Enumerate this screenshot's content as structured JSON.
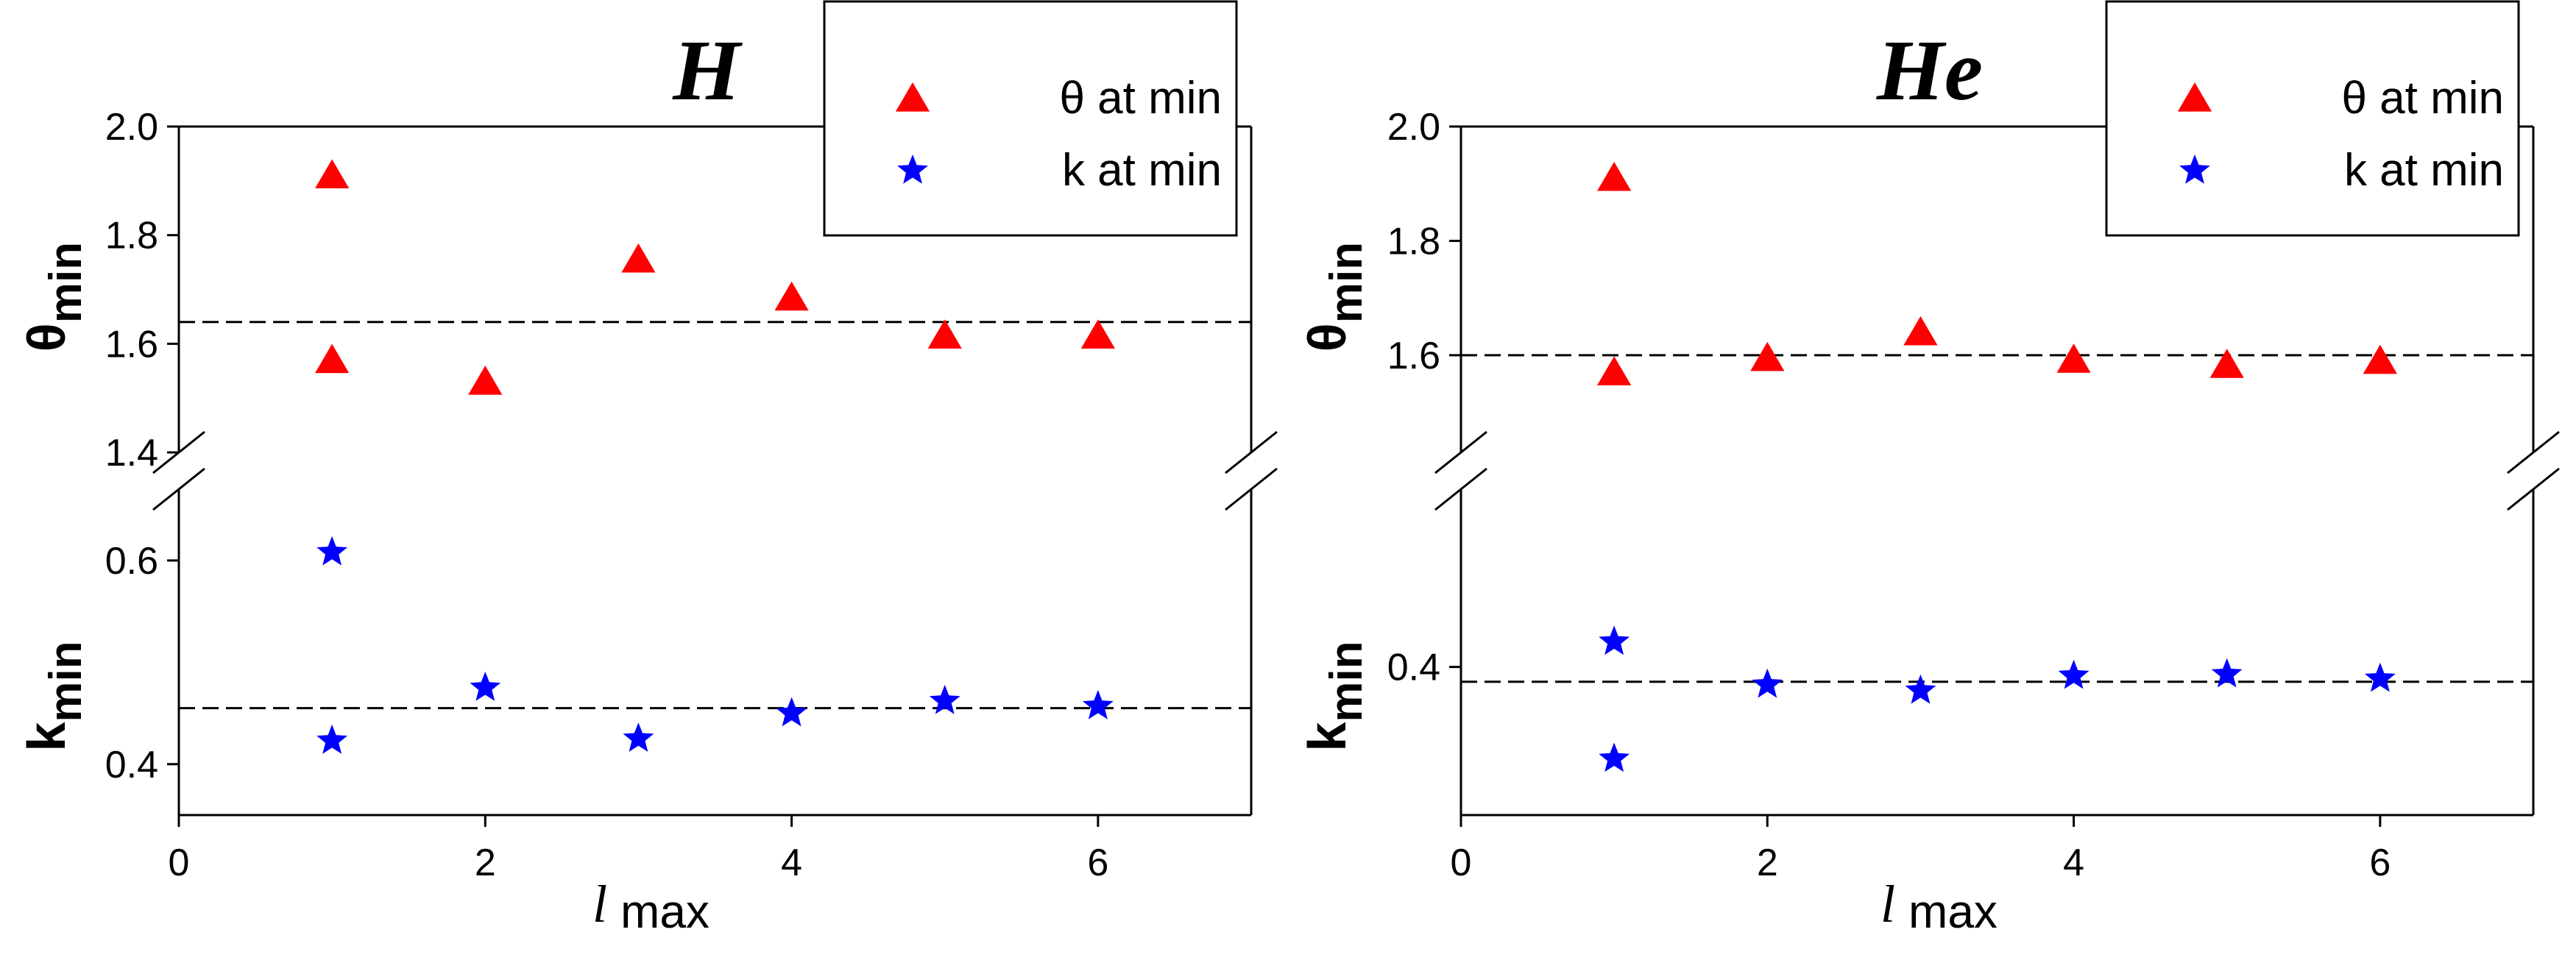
{
  "chart_data": [
    {
      "type": "scatter",
      "title": "H",
      "xlabel": {
        "italic": "l",
        "sub": "max"
      },
      "xlim": [
        0,
        7
      ],
      "xticks": [
        0,
        2,
        4,
        6
      ],
      "top": {
        "ylabel": {
          "base": "θ",
          "sub": "min"
        },
        "ylim": [
          1.4,
          2.0
        ],
        "yticks": [
          1.4,
          1.6,
          1.8,
          2.0
        ],
        "ytick_labels": [
          "1.4",
          "1.6",
          "1.8",
          "2.0"
        ],
        "reference_line": 1.64
      },
      "bottom": {
        "ylabel": {
          "base": "k",
          "sub": "min"
        },
        "ylim": [
          0.35,
          0.67
        ],
        "yticks": [
          0.4,
          0.6
        ],
        "ytick_labels": [
          "0.4",
          "0.6"
        ],
        "reference_line": 0.455
      },
      "series": [
        {
          "name": "θ at min",
          "axis": "top",
          "marker": "triangle",
          "color": "#ff0000",
          "x": [
            1,
            1,
            2,
            3,
            4,
            5,
            6
          ],
          "y": [
            1.91,
            1.57,
            1.53,
            1.755,
            1.685,
            1.615,
            1.615
          ]
        },
        {
          "name": "k at min",
          "axis": "bottom",
          "marker": "star",
          "color": "#0000ff",
          "x": [
            1,
            1,
            2,
            3,
            4,
            5,
            6
          ],
          "y": [
            0.608,
            0.423,
            0.475,
            0.425,
            0.45,
            0.462,
            0.457
          ]
        }
      ],
      "legend": "top-right"
    },
    {
      "type": "scatter",
      "title": "He",
      "xlabel": {
        "italic": "l",
        "sub": "max"
      },
      "xlim": [
        0,
        7
      ],
      "xticks": [
        0,
        2,
        4,
        6
      ],
      "top": {
        "ylabel": {
          "base": "θ",
          "sub": "min"
        },
        "ylim": [
          1.43,
          2.0
        ],
        "yticks": [
          1.6,
          1.8,
          2.0
        ],
        "ytick_labels": [
          "1.6",
          "1.8",
          "2.0"
        ],
        "reference_line": 1.6
      },
      "bottom": {
        "ylabel": {
          "base": "k",
          "sub": "min"
        },
        "ylim": [
          0.3,
          0.52
        ],
        "yticks": [
          0.4
        ],
        "ytick_labels": [
          "0.4"
        ],
        "reference_line": 0.39
      },
      "series": [
        {
          "name": "θ at min",
          "axis": "top",
          "marker": "triangle",
          "color": "#ff0000",
          "x": [
            1,
            1,
            2,
            3,
            4,
            5,
            6
          ],
          "y": [
            1.91,
            1.57,
            1.595,
            1.64,
            1.592,
            1.583,
            1.59
          ]
        },
        {
          "name": "k at min",
          "axis": "bottom",
          "marker": "star",
          "color": "#0000ff",
          "x": [
            1,
            1,
            2,
            3,
            4,
            5,
            6
          ],
          "y": [
            0.417,
            0.338,
            0.388,
            0.384,
            0.394,
            0.395,
            0.392
          ]
        }
      ],
      "legend": "top-right"
    }
  ]
}
